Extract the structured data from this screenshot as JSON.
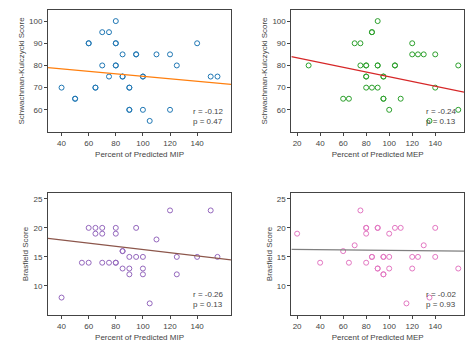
{
  "chart_data": [
    {
      "type": "scatter",
      "grid": false,
      "xlabel": "Percent of Predicted MIP",
      "ylabel": "Schwachman-Kulczycki Score",
      "xlim": [
        30,
        165
      ],
      "ylim": [
        50,
        105
      ],
      "xticks": [
        40,
        60,
        80,
        100,
        120,
        140
      ],
      "yticks": [
        60,
        70,
        80,
        90,
        100
      ],
      "annotation": "r = -0.12\np = 0.47",
      "series": [
        {
          "type": "scatter",
          "marker": "circle-open",
          "x": [
            40,
            50,
            50,
            60,
            60,
            65,
            65,
            70,
            70,
            75,
            75,
            80,
            80,
            80,
            80,
            80,
            85,
            85,
            85,
            90,
            90,
            90,
            90,
            95,
            95,
            100,
            100,
            100,
            105,
            110,
            120,
            120,
            125,
            140,
            150,
            155
          ],
          "values": [
            70,
            65,
            65,
            90,
            90,
            70,
            70,
            80,
            95,
            95,
            75,
            90,
            90,
            100,
            80,
            80,
            85,
            75,
            75,
            70,
            70,
            60,
            60,
            85,
            85,
            75,
            75,
            60,
            55,
            85,
            85,
            60,
            80,
            90,
            75,
            75
          ]
        },
        {
          "type": "line",
          "line_style": "solid",
          "x": [
            30,
            165
          ],
          "values": [
            79.0,
            71.5
          ]
        }
      ]
    },
    {
      "type": "scatter",
      "grid": false,
      "xlabel": "Percent of Predicted MEP",
      "ylabel": "Schwachman-Kulczycki Score",
      "xlim": [
        15,
        165
      ],
      "ylim": [
        50,
        105
      ],
      "xticks": [
        20,
        40,
        60,
        80,
        100,
        120,
        140
      ],
      "yticks": [
        60,
        70,
        80,
        90,
        100
      ],
      "annotation": "r = -0.24\np = 0.13",
      "series": [
        {
          "type": "scatter",
          "marker": "circle-open",
          "x": [
            30,
            60,
            65,
            70,
            75,
            75,
            80,
            80,
            80,
            80,
            80,
            85,
            85,
            85,
            90,
            90,
            90,
            90,
            95,
            95,
            95,
            95,
            100,
            105,
            105,
            110,
            120,
            120,
            125,
            130,
            135,
            140,
            140,
            160,
            160
          ],
          "values": [
            80,
            65,
            65,
            90,
            90,
            80,
            80,
            80,
            75,
            75,
            70,
            95,
            95,
            70,
            70,
            100,
            80,
            80,
            75,
            75,
            65,
            65,
            60,
            80,
            80,
            65,
            90,
            85,
            85,
            85,
            55,
            70,
            85,
            80,
            60
          ]
        },
        {
          "type": "line",
          "line_style": "solid",
          "x": [
            15,
            165
          ],
          "values": [
            84.0,
            68.0
          ]
        }
      ]
    },
    {
      "type": "scatter",
      "grid": false,
      "xlabel": "Percent of Predicted MIP",
      "ylabel": "Brasfield Score",
      "xlim": [
        30,
        165
      ],
      "ylim": [
        5,
        26
      ],
      "xticks": [
        40,
        60,
        80,
        100,
        120,
        140
      ],
      "yticks": [
        10,
        15,
        20,
        25
      ],
      "annotation": "r = -0.26\np = 0.13",
      "series": [
        {
          "type": "scatter",
          "marker": "circle-open",
          "x": [
            40,
            55,
            60,
            60,
            65,
            65,
            70,
            70,
            70,
            75,
            80,
            80,
            80,
            80,
            85,
            85,
            85,
            90,
            90,
            90,
            95,
            95,
            100,
            100,
            100,
            105,
            110,
            120,
            125,
            125,
            140,
            150,
            155
          ],
          "values": [
            8,
            14,
            20,
            14,
            20,
            19,
            19,
            20,
            14,
            14,
            14,
            20,
            19,
            14,
            16,
            16,
            13,
            15,
            13,
            12,
            20,
            15,
            15,
            12,
            13,
            7,
            18,
            23,
            15,
            12,
            15,
            23,
            15
          ]
        },
        {
          "type": "line",
          "line_style": "solid",
          "x": [
            30,
            165
          ],
          "values": [
            18.2,
            14.5
          ]
        }
      ]
    },
    {
      "type": "scatter",
      "grid": false,
      "xlabel": "Percent of Predicted MEP",
      "ylabel": "Brasfield Score",
      "xlim": [
        15,
        165
      ],
      "ylim": [
        5,
        26
      ],
      "xticks": [
        20,
        40,
        60,
        80,
        100,
        120,
        140
      ],
      "yticks": [
        10,
        15,
        20,
        25
      ],
      "annotation": "r = -0.02\np = 0.93",
      "series": [
        {
          "type": "scatter",
          "marker": "circle-open",
          "x": [
            20,
            40,
            60,
            65,
            70,
            75,
            80,
            80,
            80,
            80,
            85,
            85,
            90,
            90,
            90,
            90,
            95,
            95,
            95,
            95,
            100,
            100,
            100,
            105,
            110,
            115,
            120,
            120,
            125,
            130,
            135,
            140,
            140,
            160
          ],
          "values": [
            19,
            14,
            16,
            14,
            17,
            23,
            20,
            20,
            19,
            14,
            15,
            15,
            20,
            20,
            13,
            13,
            15,
            15,
            12,
            12,
            19,
            15,
            13,
            20,
            20,
            7,
            15,
            13,
            15,
            17,
            8,
            15,
            20,
            13
          ]
        },
        {
          "type": "line",
          "line_style": "solid",
          "x": [
            15,
            165
          ],
          "values": [
            16.3,
            16.0
          ]
        }
      ]
    }
  ]
}
